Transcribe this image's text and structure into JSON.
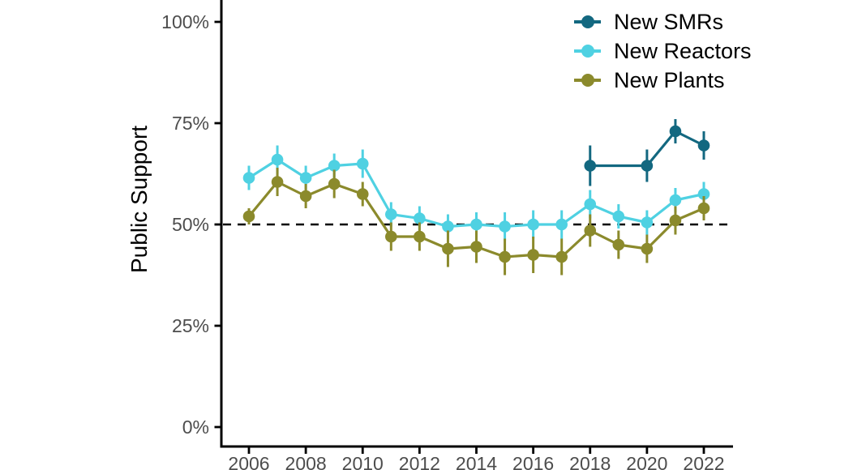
{
  "chart_data": {
    "type": "line",
    "title": "",
    "xlabel": "",
    "ylabel": "Public Support",
    "grid": false,
    "background_color": "#ffffff",
    "axis_color": "#000000",
    "tick_label_color": "#4d4d4d",
    "legend_position": "top-right",
    "y_axis": {
      "range": [
        0,
        100
      ],
      "tick_values": [
        0,
        25,
        50,
        75,
        100
      ],
      "tick_labels": [
        "0%",
        "25%",
        "50%",
        "75%",
        "100%"
      ]
    },
    "x_axis": {
      "range": [
        2005,
        2023
      ],
      "tick_values": [
        2006,
        2008,
        2010,
        2012,
        2014,
        2016,
        2018,
        2020,
        2022
      ],
      "tick_labels": [
        "2006",
        "2008",
        "2010",
        "2012",
        "2014",
        "2016",
        "2018",
        "2020",
        "2022"
      ]
    },
    "reference_line": {
      "y": 50,
      "style": "dashed",
      "color": "#000000"
    },
    "series": [
      {
        "name": "New SMRs",
        "color": "#136880",
        "x": [
          2018,
          2020,
          2021,
          2022
        ],
        "values": [
          64.5,
          64.5,
          73,
          69.5
        ],
        "ci": [
          5,
          4,
          3,
          3.5
        ]
      },
      {
        "name": "New Reactors",
        "color": "#4fd1e2",
        "x": [
          2006,
          2007,
          2008,
          2009,
          2010,
          2011,
          2012,
          2013,
          2014,
          2015,
          2016,
          2017,
          2018,
          2019,
          2020,
          2021,
          2022
        ],
        "values": [
          61.5,
          66,
          61.5,
          64.5,
          65,
          52.5,
          51.5,
          49.5,
          50,
          49.5,
          50,
          50,
          55,
          52,
          50.5,
          56,
          57.5
        ],
        "ci": [
          3,
          3.5,
          3,
          3,
          3.5,
          3,
          3,
          3,
          3,
          3.5,
          3.5,
          3.5,
          3.5,
          3,
          3,
          3,
          3
        ]
      },
      {
        "name": "New Plants",
        "color": "#8b8a2c",
        "x": [
          2006,
          2007,
          2008,
          2009,
          2010,
          2011,
          2012,
          2013,
          2014,
          2015,
          2016,
          2017,
          2018,
          2019,
          2020,
          2021,
          2022
        ],
        "values": [
          52,
          60.5,
          57,
          60,
          57.5,
          47,
          47,
          44,
          44.5,
          42,
          42.5,
          42,
          48.5,
          45,
          44,
          51,
          54
        ],
        "ci": [
          2,
          3.5,
          3,
          3.5,
          3,
          3.5,
          3.5,
          4.5,
          4,
          4.5,
          4.5,
          4.5,
          4,
          3.5,
          3.5,
          3.5,
          3
        ]
      }
    ]
  }
}
